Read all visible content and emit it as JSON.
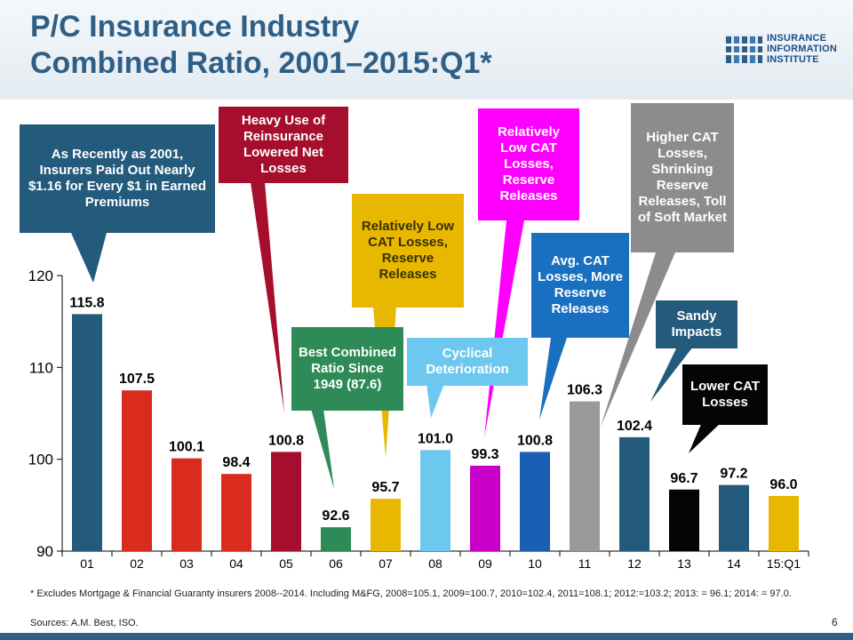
{
  "title_line1": "P/C Insurance Industry",
  "title_line2": "Combined Ratio, 2001–2015:Q1*",
  "logo": {
    "lines": [
      "INSURANCE",
      "INFORMATION",
      "INSTITUTE"
    ],
    "icon": "iii-logo-icon"
  },
  "colors": {
    "title": "#2f5f86",
    "bottom_bar": "#2f5f86"
  },
  "chart_data": {
    "type": "bar",
    "categories": [
      "01",
      "02",
      "03",
      "04",
      "05",
      "06",
      "07",
      "08",
      "09",
      "10",
      "11",
      "12",
      "13",
      "14",
      "15:Q1"
    ],
    "values": [
      115.8,
      107.5,
      100.1,
      98.4,
      100.8,
      92.6,
      95.7,
      101.0,
      99.3,
      100.8,
      106.3,
      102.4,
      96.7,
      97.2,
      96.0
    ],
    "value_labels": [
      "115.8",
      "107.5",
      "100.1",
      "98.4",
      "100.8",
      "92.6",
      "95.7",
      "101.0",
      "99.3",
      "100.8",
      "106.3",
      "102.4",
      "96.7",
      "97.2",
      "96.0"
    ],
    "bar_colors": [
      "#245a7b",
      "#d92b1e",
      "#d92b1e",
      "#d92b1e",
      "#a50e2c",
      "#2e8b57",
      "#e8b800",
      "#6dc8ef",
      "#c800c8",
      "#1a5fb4",
      "#999999",
      "#245a7b",
      "#050505",
      "#245a7b",
      "#e8b800"
    ],
    "ylim": [
      90,
      120
    ],
    "yticks": [
      90,
      100,
      110,
      120
    ],
    "grid": false
  },
  "callouts": [
    {
      "text": "As Recently as 2001, Insurers Paid Out Nearly $1.16 for Every $1 in Earned Premiums",
      "color": "#245a7b"
    },
    {
      "text": "Heavy Use of Reinsurance Lowered Net Losses",
      "color": "#a50e2c"
    },
    {
      "text": "Relatively Low CAT Losses, Reserve Releases",
      "color": "#e8b800"
    },
    {
      "text": "Best Combined Ratio Since 1949 (87.6)",
      "color": "#2e8b57"
    },
    {
      "text": "Cyclical Deterioration",
      "color": "#6dc8ef"
    },
    {
      "text": "Relatively Low CAT Losses, Reserve Releases",
      "color": "#ff00ff"
    },
    {
      "text": "Avg. CAT Losses, More Reserve Releases",
      "color": "#1a70c0"
    },
    {
      "text": "Higher CAT Losses, Shrinking Reserve Releases, Toll of Soft Market",
      "color": "#8c8c8c"
    },
    {
      "text": "Sandy Impacts",
      "color": "#245a7b"
    },
    {
      "text": "Lower CAT Losses",
      "color": "#050505"
    }
  ],
  "footnote": "* Excludes Mortgage & Financial Guaranty insurers 2008--2014. Including M&FG, 2008=105.1, 2009=100.7, 2010=102.4, 2011=108.1; 2012:=103.2; 2013: = 96.1; 2014: = 97.0.",
  "sources": "Sources: A.M. Best, ISO.",
  "page_number": "6"
}
